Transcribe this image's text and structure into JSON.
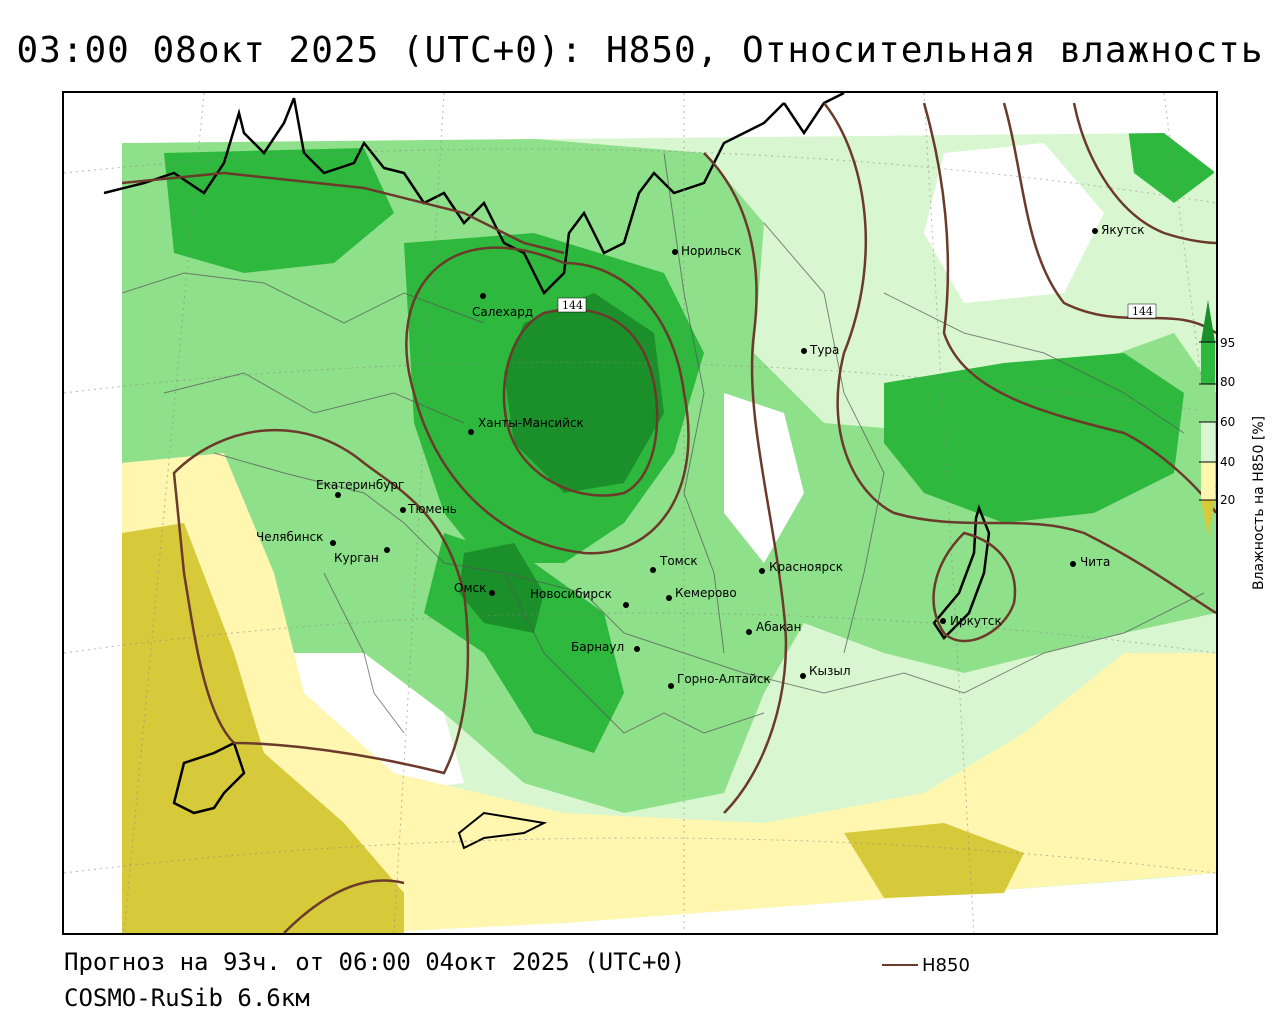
{
  "title": "03:00 08окт 2025 (UTC+0): H850, Относительная влажность",
  "footer": {
    "forecast_line": "Прогноз на 93ч. от 06:00 04окт 2025 (UTC+0)",
    "model_line": "COSMO-RuSib 6.6км",
    "series_label": "H850"
  },
  "legend": {
    "title": "Влажность на H850 [%]",
    "ticks": [
      "95",
      "80",
      "60",
      "40",
      "20"
    ],
    "colors": [
      "#1a8f2a",
      "#2fb83e",
      "#8fe08a",
      "#d8f7d0",
      "#fff6b0",
      "#d6c93a"
    ]
  },
  "contour_labels": [
    "144",
    "144"
  ],
  "cities": [
    {
      "name": "Норильск"
    },
    {
      "name": "Якутск"
    },
    {
      "name": "Салехард"
    },
    {
      "name": "Тура"
    },
    {
      "name": "Ханты-Мансийск"
    },
    {
      "name": "Екатеринбург"
    },
    {
      "name": "Тюмень"
    },
    {
      "name": "Челябинск"
    },
    {
      "name": "Курган"
    },
    {
      "name": "Омск"
    },
    {
      "name": "Новосибирск"
    },
    {
      "name": "Томск"
    },
    {
      "name": "Кемерово"
    },
    {
      "name": "Красноярск"
    },
    {
      "name": "Абакан"
    },
    {
      "name": "Барнаул"
    },
    {
      "name": "Горно-Алтайск"
    },
    {
      "name": "Кызыл"
    },
    {
      "name": "Иркутск"
    },
    {
      "name": "Чита"
    }
  ],
  "colors": {
    "contour": "#6b3a2a",
    "green_dark": "#1a8f2a",
    "green_mid": "#2fb83e",
    "green_light": "#8fe08a",
    "green_pale": "#d8f7d0",
    "yellow_pale": "#fff6b0",
    "yellow_dark": "#d6c93a"
  }
}
